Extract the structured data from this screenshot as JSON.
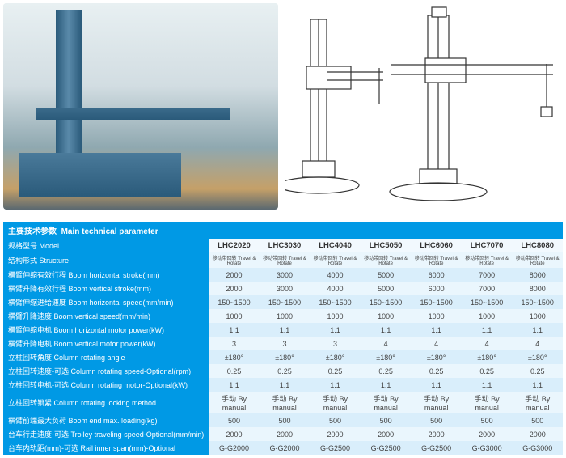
{
  "section_title_cn": "主要技术参数",
  "section_title_en": "Main technical parameter",
  "colors": {
    "header_bg": "#0099e5",
    "header_fg": "#ffffff",
    "odd_bg": "#eaf6fd",
    "even_bg": "#d9eefb",
    "model_bg": "#f2f9fe"
  },
  "models": [
    "LHC2020",
    "LHC3030",
    "LHC4040",
    "LHC5050",
    "LHC6060",
    "LHC7070",
    "LHC8080"
  ],
  "rows": [
    {
      "label": "规格型号 Model",
      "vals": [
        "LHC2020",
        "LHC3030",
        "LHC4040",
        "LHC5050",
        "LHC6060",
        "LHC7070",
        "LHC8080"
      ],
      "head": true
    },
    {
      "label": "结构形式 Structure",
      "vals": [
        "移动带回转 Travel & Rotate",
        "移动带回转 Travel & Rotate",
        "移动带回转 Travel & Rotate",
        "移动带回转 Travel & Rotate",
        "移动带回转 Travel & Rotate",
        "移动带回转 Travel & Rotate",
        "移动带回转 Travel & Rotate"
      ],
      "tiny": true
    },
    {
      "label": "横臂伸缩有效行程 Boom horizontal stroke(mm)",
      "vals": [
        "2000",
        "3000",
        "4000",
        "5000",
        "6000",
        "7000",
        "8000"
      ]
    },
    {
      "label": "横臂升降有效行程 Boom vertical stroke(mm)",
      "vals": [
        "2000",
        "3000",
        "4000",
        "5000",
        "6000",
        "7000",
        "8000"
      ]
    },
    {
      "label": "横臂伸缩进给速度 Boom horizontal speed(mm/min)",
      "vals": [
        "150~1500",
        "150~1500",
        "150~1500",
        "150~1500",
        "150~1500",
        "150~1500",
        "150~1500"
      ]
    },
    {
      "label": "横臂升降速度 Boom vertical speed(mm/min)",
      "vals": [
        "1000",
        "1000",
        "1000",
        "1000",
        "1000",
        "1000",
        "1000"
      ]
    },
    {
      "label": "横臂伸缩电机 Boom horizontal motor power(kW)",
      "vals": [
        "1.1",
        "1.1",
        "1.1",
        "1.1",
        "1.1",
        "1.1",
        "1.1"
      ]
    },
    {
      "label": "横臂升降电机 Boom vertical motor power(kW)",
      "vals": [
        "3",
        "3",
        "3",
        "4",
        "4",
        "4",
        "4"
      ]
    },
    {
      "label": "立柱回转角度 Column rotating angle",
      "vals": [
        "±180°",
        "±180°",
        "±180°",
        "±180°",
        "±180°",
        "±180°",
        "±180°"
      ]
    },
    {
      "label": "立柱回转速度-可选 Column rotating speed-Optional(rpm)",
      "vals": [
        "0.25",
        "0.25",
        "0.25",
        "0.25",
        "0.25",
        "0.25",
        "0.25"
      ]
    },
    {
      "label": "立柱回转电机-可选 Column rotating motor-Optional(kW)",
      "vals": [
        "1.1",
        "1.1",
        "1.1",
        "1.1",
        "1.1",
        "1.1",
        "1.1"
      ]
    },
    {
      "label": "立柱回转锁紧 Column rotating locking method",
      "vals": [
        "手动 By manual",
        "手动 By manual",
        "手动 By manual",
        "手动 By manual",
        "手动 By manual",
        "手动 By manual",
        "手动 By manual"
      ]
    },
    {
      "label": "横臂前端最大负荷 Boom end max. loading(kg)",
      "vals": [
        "500",
        "500",
        "500",
        "500",
        "500",
        "500",
        "500"
      ]
    },
    {
      "label": "台车行走速度-可选 Trolley traveling speed-Optional(mm/min)",
      "vals": [
        "2000",
        "2000",
        "2000",
        "2000",
        "2000",
        "2000",
        "2000"
      ]
    },
    {
      "label": "台车内轨距(mm)-可选 Rail inner span(mm)-Optional",
      "vals": [
        "G-G2000",
        "G-G2000",
        "G-G2500",
        "G-G2500",
        "G-G2500",
        "G-G3000",
        "G-G3000"
      ]
    }
  ]
}
